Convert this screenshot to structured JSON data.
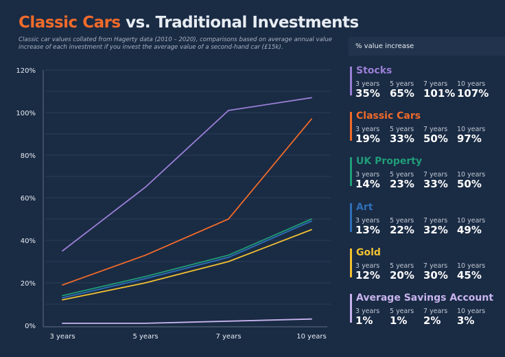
{
  "title": {
    "highlight": "Classic Cars",
    "rest": " vs. Traditional Investments"
  },
  "subtitle": "Classic car values collated from Hagerty data (2010 – 2020), comparisons based on average annual value increase of each investment if you invest the average value of a second-hand car (£15k).",
  "legend_header": "% value increase",
  "chart_data": {
    "type": "line",
    "categories": [
      "3 years",
      "5 years",
      "7 years",
      "10 years"
    ],
    "ylim": [
      0,
      120
    ],
    "yticks": [
      "0%",
      "20%",
      "40%",
      "60%",
      "80%",
      "100%",
      "120%"
    ],
    "grid": true,
    "legend_placement": "right",
    "series": [
      {
        "name": "Stocks",
        "color": "#9a7fd6",
        "values": [
          35,
          65,
          101,
          107
        ],
        "labels": [
          "35%",
          "65%",
          "101%",
          "107%"
        ]
      },
      {
        "name": "Classic Cars",
        "color": "#f26b2a",
        "values": [
          19,
          33,
          50,
          97
        ],
        "labels": [
          "19%",
          "33%",
          "50%",
          "97%"
        ]
      },
      {
        "name": "UK Property",
        "color": "#1f9d78",
        "values": [
          14,
          23,
          33,
          50
        ],
        "labels": [
          "14%",
          "23%",
          "33%",
          "50%"
        ]
      },
      {
        "name": "Art",
        "color": "#2e70b8",
        "values": [
          13,
          22,
          32,
          49
        ],
        "labels": [
          "13%",
          "22%",
          "32%",
          "49%"
        ]
      },
      {
        "name": "Gold",
        "color": "#f2c232",
        "values": [
          12,
          20,
          30,
          45
        ],
        "labels": [
          "12%",
          "20%",
          "30%",
          "45%"
        ]
      },
      {
        "name": "Average Savings Account",
        "color": "#c8b4ee",
        "values": [
          1,
          1,
          2,
          3
        ],
        "labels": [
          "1%",
          "1%",
          "2%",
          "3%"
        ]
      }
    ]
  }
}
